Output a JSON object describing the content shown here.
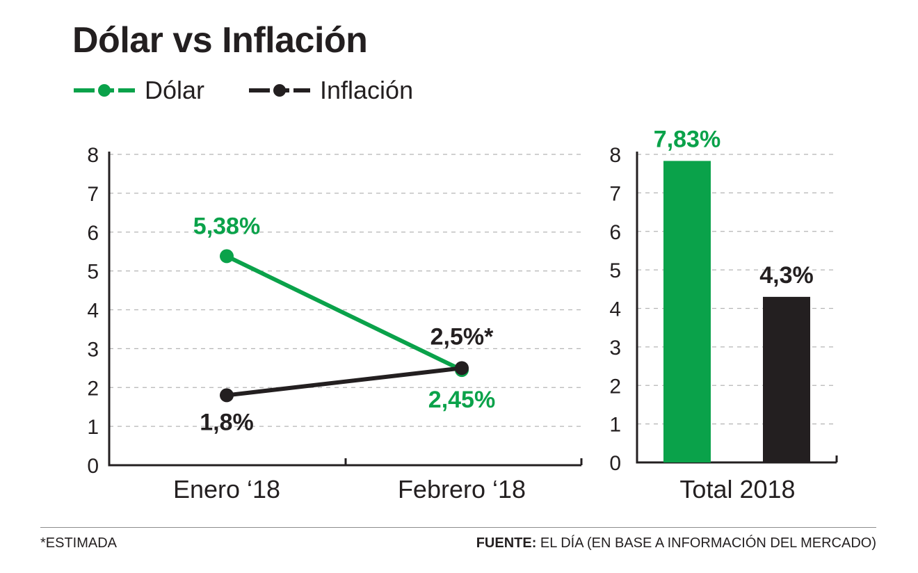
{
  "title": "Dólar vs Inflación",
  "colors": {
    "dolar": "#0aa24a",
    "inflacion": "#231f20",
    "grid": "#b5b5b5"
  },
  "legend": [
    {
      "label": "Dólar",
      "color": "#0aa24a"
    },
    {
      "label": "Inflación",
      "color": "#231f20"
    }
  ],
  "chart_data": [
    {
      "type": "line",
      "categories": [
        "Enero ‘18",
        "Febrero ‘18"
      ],
      "yticks": [
        "0",
        "1",
        "2",
        "3",
        "4",
        "5",
        "6",
        "7",
        "8"
      ],
      "ylim": [
        0,
        8
      ],
      "grid": true,
      "series": [
        {
          "name": "Dólar",
          "color": "#0aa24a",
          "values": [
            5.38,
            2.45
          ],
          "labels": [
            "5,38%",
            "2,45%"
          ]
        },
        {
          "name": "Inflación",
          "color": "#231f20",
          "values": [
            1.8,
            2.5
          ],
          "labels": [
            "1,8%",
            "2,5%*"
          ]
        }
      ]
    },
    {
      "type": "bar",
      "categories": [
        "Total 2018"
      ],
      "yticks": [
        "0",
        "1",
        "2",
        "3",
        "4",
        "5",
        "6",
        "7",
        "8"
      ],
      "ylim": [
        0,
        8
      ],
      "grid": true,
      "series": [
        {
          "name": "Dólar",
          "color": "#0aa24a",
          "values": [
            7.83
          ],
          "labels": [
            "7,83%"
          ]
        },
        {
          "name": "Inflación",
          "color": "#231f20",
          "values": [
            4.3
          ],
          "labels": [
            "4,3%"
          ]
        }
      ]
    }
  ],
  "footnote": "*ESTIMADA",
  "source": {
    "prefix": "FUENTE:",
    "text": " EL DÍA (EN BASE A INFORMACIÓN DEL MERCADO)"
  }
}
